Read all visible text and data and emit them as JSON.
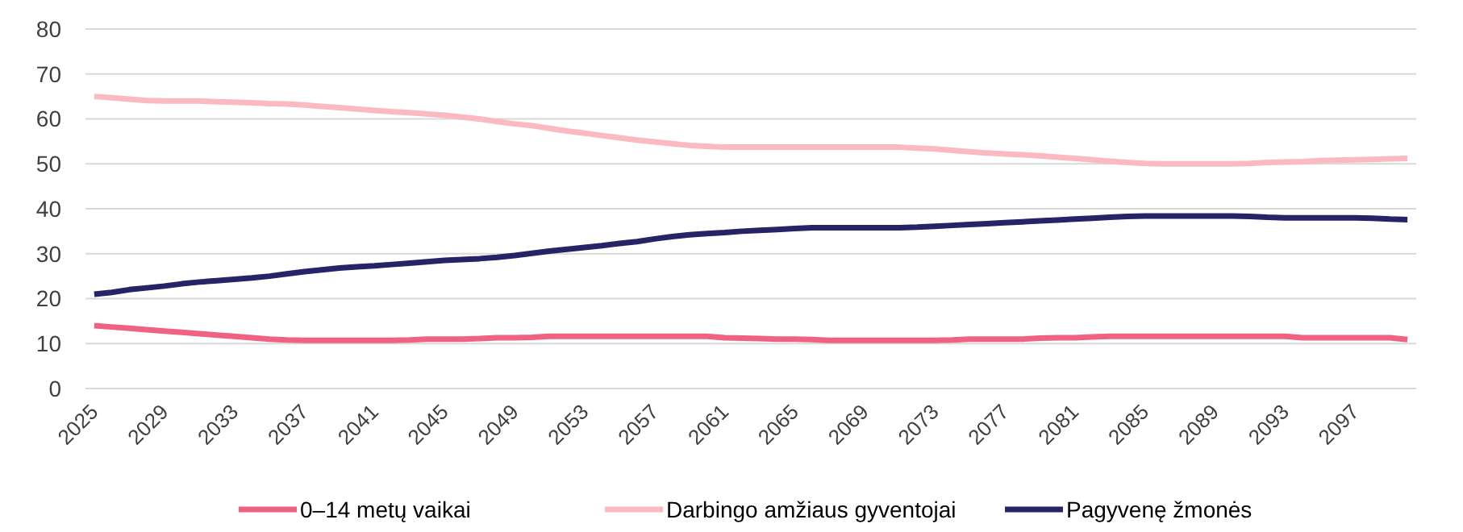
{
  "chart_data": {
    "type": "line",
    "categories": [
      "2025",
      null,
      null,
      null,
      "2029",
      null,
      null,
      null,
      "2033",
      null,
      null,
      null,
      "2037",
      null,
      null,
      null,
      "2041",
      null,
      null,
      null,
      "2045",
      null,
      null,
      null,
      "2049",
      null,
      null,
      null,
      "2053",
      null,
      null,
      null,
      "2057",
      null,
      null,
      null,
      "2061",
      null,
      null,
      null,
      "2065",
      null,
      null,
      null,
      "2069",
      null,
      null,
      null,
      "2073",
      null,
      null,
      null,
      "2077",
      null,
      null,
      null,
      "2081",
      null,
      null,
      null,
      "2085",
      null,
      null,
      null,
      "2089",
      null,
      null,
      null,
      "2093",
      null,
      null,
      null,
      "2097",
      null,
      null,
      null
    ],
    "series": [
      {
        "name": "0–14 metų vaikai",
        "color": "#f06282",
        "values": [
          14.0,
          13.7,
          13.4,
          13.1,
          12.8,
          12.5,
          12.2,
          11.9,
          11.6,
          11.3,
          11.0,
          10.8,
          10.7,
          10.7,
          10.7,
          10.7,
          10.7,
          10.7,
          10.8,
          11.0,
          11.0,
          11.0,
          11.1,
          11.3,
          11.3,
          11.4,
          11.6,
          11.6,
          11.6,
          11.6,
          11.6,
          11.6,
          11.6,
          11.6,
          11.6,
          11.6,
          11.3,
          11.2,
          11.1,
          11.0,
          11.0,
          10.9,
          10.7,
          10.7,
          10.7,
          10.7,
          10.7,
          10.7,
          10.7,
          10.8,
          11.0,
          11.0,
          11.0,
          11.0,
          11.2,
          11.3,
          11.3,
          11.5,
          11.6,
          11.6,
          11.6,
          11.6,
          11.6,
          11.6,
          11.6,
          11.6,
          11.6,
          11.6,
          11.6,
          11.3,
          11.3,
          11.3,
          11.3,
          11.3,
          11.3,
          10.9
        ]
      },
      {
        "name": "Darbingo amžiaus gyventojai",
        "color": "#fbbac1",
        "values": [
          65.0,
          64.7,
          64.4,
          64.1,
          64.0,
          64.0,
          64.0,
          63.8,
          63.7,
          63.6,
          63.4,
          63.3,
          63.1,
          62.8,
          62.5,
          62.2,
          61.9,
          61.6,
          61.4,
          61.1,
          60.8,
          60.4,
          60.0,
          59.4,
          58.9,
          58.5,
          57.9,
          57.3,
          56.8,
          56.3,
          55.8,
          55.3,
          54.9,
          54.5,
          54.1,
          53.9,
          53.7,
          53.7,
          53.7,
          53.7,
          53.7,
          53.7,
          53.7,
          53.7,
          53.7,
          53.7,
          53.7,
          53.5,
          53.3,
          53.0,
          52.7,
          52.4,
          52.2,
          52.0,
          51.8,
          51.5,
          51.2,
          50.9,
          50.6,
          50.3,
          50.1,
          50.0,
          50.0,
          50.0,
          50.0,
          50.0,
          50.1,
          50.3,
          50.4,
          50.5,
          50.7,
          50.8,
          50.9,
          51.0,
          51.1,
          51.2
        ]
      },
      {
        "name": "Pagyvenę žmonės",
        "color": "#262366",
        "values": [
          21.0,
          21.4,
          22.0,
          22.4,
          22.8,
          23.3,
          23.7,
          24.0,
          24.3,
          24.6,
          25.0,
          25.5,
          26.0,
          26.4,
          26.8,
          27.1,
          27.3,
          27.6,
          27.9,
          28.2,
          28.5,
          28.7,
          28.9,
          29.2,
          29.6,
          30.1,
          30.6,
          31.0,
          31.4,
          31.8,
          32.3,
          32.7,
          33.3,
          33.8,
          34.2,
          34.5,
          34.7,
          35.0,
          35.2,
          35.4,
          35.6,
          35.8,
          35.8,
          35.8,
          35.8,
          35.8,
          35.8,
          35.9,
          36.1,
          36.3,
          36.5,
          36.7,
          36.9,
          37.1,
          37.3,
          37.5,
          37.7,
          37.9,
          38.1,
          38.3,
          38.4,
          38.4,
          38.4,
          38.4,
          38.4,
          38.4,
          38.3,
          38.1,
          38.0,
          38.0,
          38.0,
          38.0,
          38.0,
          37.9,
          37.7,
          37.6
        ]
      }
    ],
    "ylim": [
      0,
      80
    ],
    "yticks": [
      0,
      10,
      20,
      30,
      40,
      50,
      60,
      70,
      80
    ],
    "grid": "y",
    "legend": "bottom",
    "marker": "none",
    "line_style": "solid"
  }
}
